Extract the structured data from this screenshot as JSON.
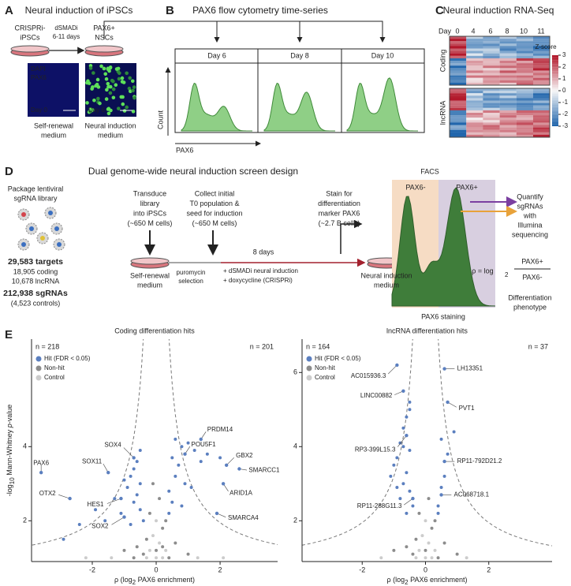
{
  "figure": {
    "A": {
      "letter": "A",
      "title": "Neural induction of iPSCs",
      "start": [
        "CRISPRi-",
        "iPSCs"
      ],
      "treatment": [
        "dSMADi",
        "6-11 days"
      ],
      "end": [
        "PAX6+",
        "NSCs"
      ],
      "stains": [
        "DAPI",
        "PAX6"
      ],
      "image_days": [
        "Day 0",
        "Day 6"
      ],
      "captions": [
        [
          "Self-renewal",
          "medium"
        ],
        [
          "Neural induction",
          "medium"
        ]
      ]
    },
    "B": {
      "letter": "B",
      "title": "PAX6 flow cytometry time-series",
      "days": [
        "Day 6",
        "Day 8",
        "Day 10"
      ],
      "y_label": "Count",
      "x_label": "PAX6"
    },
    "C": {
      "letter": "C",
      "title": "Neural induction RNA-Seq",
      "day_label": "Day",
      "days": [
        0,
        4,
        6,
        8,
        10,
        11
      ],
      "groups": [
        "Coding",
        "lncRNA"
      ],
      "colorbar_title": "Z-score",
      "colorbar_ticks": [
        3,
        2,
        1,
        0,
        -1,
        -2,
        -3
      ]
    },
    "D": {
      "letter": "D",
      "title": "Dual genome-wide neural induction screen design",
      "library": [
        "Package lentiviral",
        "sgRNA library"
      ],
      "targets": [
        "29,583 targets",
        "18,905 coding",
        "10,678 lncRNA"
      ],
      "sgrnas": [
        "212,938 sgRNAs",
        "(4,523 controls)"
      ],
      "transduce": [
        "Transduce",
        "library",
        "into iPSCs",
        "(~650 M cells)"
      ],
      "collect": [
        "Collect initial",
        "T0 population &",
        "seed for induction",
        "(~650 M cells)"
      ],
      "stain": [
        "Stain for",
        "differentiation",
        "marker PAX6",
        "(~2.7 B cells)"
      ],
      "start_medium": [
        "Self-renewal",
        "medium"
      ],
      "end_medium": [
        "Neural induction",
        "medium"
      ],
      "duration": "8 days",
      "selection": [
        "puromycin",
        "selection"
      ],
      "induction": [
        "+ dSMADi neural induction",
        "+ doxycycline (CRISPRi)"
      ],
      "facs": "FACS",
      "gates": [
        "PAX6-",
        "PAX6+"
      ],
      "facs_axis": "PAX6 staining",
      "quantify": [
        "Quantify",
        "sgRNAs",
        "with",
        "Illumina",
        "sequencing"
      ],
      "formula": {
        "lhs": "ρ = log",
        "base": "2",
        "numerator": "PAX6+",
        "denominator": "PAX6-"
      },
      "phenotype": [
        "Differentiation",
        "phenotype"
      ]
    },
    "E": {
      "letter": "E"
    }
  },
  "chart_data": [
    {
      "type": "scatter",
      "title": "Coding differentiation hits",
      "counts": [
        "n = 218",
        "n = 201"
      ],
      "x_label": [
        "ρ (log",
        "2",
        " PAX6 enrichment)"
      ],
      "y_label": [
        "-log",
        "10",
        " Mann-Whitney ",
        "p",
        "-value"
      ],
      "xlim": [
        -3.9,
        3.8
      ],
      "ylim": [
        0.9,
        6.9
      ],
      "xticks": [
        -2,
        0,
        2
      ],
      "yticks": [
        2,
        4
      ],
      "series": [
        {
          "name": "Hit (FDR < 0.05)",
          "color": "#5b7fbf",
          "x": [
            -0.5,
            -0.6,
            -0.7,
            -0.8,
            -0.5,
            -0.9,
            -1.0,
            -0.6,
            -0.7,
            -1.3,
            -0.5,
            -1.1,
            -1.6,
            -0.4,
            -2.4,
            -1.9,
            -0.8,
            -2.9,
            0.6,
            0.8,
            1.0,
            1.2,
            0.5,
            0.7,
            1.4,
            0.6,
            0.9,
            1.1,
            0.4,
            0.5,
            0.8,
            1.6,
            2.0,
            0.4
          ],
          "y": [
            3.9,
            3.6,
            3.4,
            3.2,
            3.0,
            2.9,
            3.1,
            2.7,
            2.5,
            2.6,
            2.3,
            2.2,
            2.0,
            2.0,
            1.9,
            2.3,
            1.9,
            1.5,
            4.2,
            4.0,
            4.1,
            3.9,
            3.7,
            3.5,
            3.6,
            3.2,
            3.0,
            2.9,
            2.8,
            2.5,
            2.4,
            3.8,
            3.7,
            2.2
          ]
        },
        {
          "name": "Non-hit",
          "color": "#8c8c8c",
          "x": [
            -0.3,
            0.2,
            0.0,
            -0.2,
            0.3,
            -0.6,
            0.6,
            0.1,
            -0.4,
            0.4,
            -1.0,
            1.0,
            -0.1,
            0.2,
            -0.7
          ],
          "y": [
            1.5,
            1.8,
            1.2,
            2.2,
            2.0,
            1.3,
            1.4,
            2.6,
            1.1,
            1.0,
            1.2,
            1.1,
            3.0,
            1.3,
            1.0
          ]
        },
        {
          "name": "Control",
          "color": "#cccccc",
          "x": [
            0.0,
            0.1,
            -0.1,
            0.2,
            -0.2,
            0.0,
            0.3,
            -0.3,
            -1.4,
            1.3,
            -2.2,
            2.1
          ],
          "y": [
            1.0,
            1.4,
            1.6,
            1.0,
            1.2,
            2.0,
            1.2,
            1.0,
            1.0,
            1.0,
            1.0,
            1.0
          ]
        }
      ],
      "annotations": [
        {
          "label": "PAX6",
          "x": -3.6,
          "y": 3.3
        },
        {
          "label": "SOX11",
          "x": -1.5,
          "y": 3.3
        },
        {
          "label": "SOX4",
          "x": -0.7,
          "y": 3.7
        },
        {
          "label": "OTX2",
          "x": -2.7,
          "y": 2.6
        },
        {
          "label": "HES1",
          "x": -1.1,
          "y": 2.6
        },
        {
          "label": "SOX2",
          "x": -1.0,
          "y": 2.1
        },
        {
          "label": "PRDM14",
          "x": 1.4,
          "y": 4.2
        },
        {
          "label": "POU5F1",
          "x": 0.9,
          "y": 3.8
        },
        {
          "label": "GBX2",
          "x": 2.2,
          "y": 3.5
        },
        {
          "label": "SMARCC1",
          "x": 2.6,
          "y": 3.4
        },
        {
          "label": "ARID1A",
          "x": 2.1,
          "y": 3.0
        },
        {
          "label": "SMARCA4",
          "x": 1.9,
          "y": 2.2
        }
      ]
    },
    {
      "type": "scatter",
      "title": "lncRNA differentiation hits",
      "counts": [
        "n = 164",
        "n = 37"
      ],
      "x_label": [
        "ρ (log",
        "2",
        " PAX6 enrichment)"
      ],
      "xlim": [
        -3.9,
        4.0
      ],
      "ylim": [
        0.9,
        6.9
      ],
      "xticks": [
        -2,
        0,
        2
      ],
      "yticks": [
        2,
        4,
        6
      ],
      "series": [
        {
          "name": "Hit (FDR < 0.05)",
          "color": "#5b7fbf",
          "x": [
            -0.5,
            -0.6,
            -0.7,
            -0.8,
            -0.5,
            -0.9,
            -1.0,
            -0.6,
            -0.7,
            -0.5,
            -0.8,
            -0.4,
            -0.6,
            -0.9,
            -0.7,
            -0.5,
            -1.1,
            0.4,
            0.5,
            0.6,
            0.4,
            0.7,
            0.5,
            0.9
          ],
          "y": [
            5.0,
            4.8,
            4.5,
            4.1,
            3.9,
            3.7,
            3.5,
            3.3,
            3.0,
            2.8,
            2.6,
            2.4,
            2.2,
            2.9,
            4.0,
            5.2,
            3.2,
            2.4,
            2.9,
            3.2,
            2.2,
            3.8,
            4.2,
            4.4
          ]
        },
        {
          "name": "Non-hit",
          "color": "#8c8c8c",
          "x": [
            -0.3,
            0.2,
            0.0,
            -0.2,
            0.3,
            -0.6,
            0.6,
            0.1,
            -0.4,
            0.4,
            1.0,
            -1.0
          ],
          "y": [
            1.5,
            1.8,
            1.2,
            2.2,
            2.0,
            1.3,
            1.4,
            2.6,
            1.1,
            1.0,
            1.1,
            1.2
          ]
        },
        {
          "name": "Control",
          "color": "#cccccc",
          "x": [
            0.0,
            0.1,
            -0.1,
            0.2,
            -0.2,
            0.0,
            0.3,
            -0.3,
            -1.4,
            1.3
          ],
          "y": [
            1.0,
            1.4,
            1.6,
            1.0,
            1.2,
            2.0,
            1.2,
            1.0,
            1.0,
            1.0
          ]
        }
      ],
      "annotations": [
        {
          "label": "AC015936.3",
          "x": -0.9,
          "y": 6.2
        },
        {
          "label": "LINC00882",
          "x": -0.7,
          "y": 5.5
        },
        {
          "label": "RP3-399L15.3",
          "x": -0.6,
          "y": 4.3
        },
        {
          "label": "RP11-288G11.3",
          "x": -0.4,
          "y": 2.6
        },
        {
          "label": "LH13351",
          "x": 0.6,
          "y": 6.1
        },
        {
          "label": "PVT1",
          "x": 0.7,
          "y": 5.2
        },
        {
          "label": "RP11-792D21.2",
          "x": 0.6,
          "y": 3.6
        },
        {
          "label": "AC068718.1",
          "x": 0.5,
          "y": 2.7
        }
      ]
    }
  ]
}
